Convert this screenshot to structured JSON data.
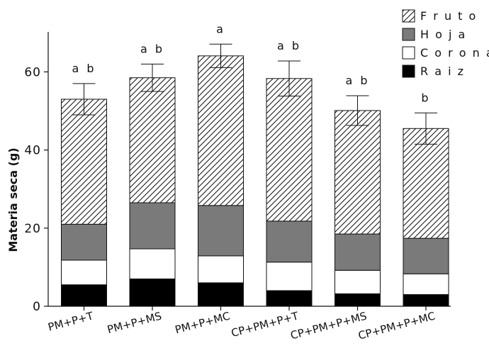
{
  "chart_data": {
    "type": "bar",
    "stacked": true,
    "categories": [
      "PM+P+T",
      "PM+P+MS",
      "PM+P+MC",
      "CP+PM+P+T",
      "CP+PM+P+MS",
      "CP+PM+P+MC"
    ],
    "series": [
      {
        "name": "Raiz",
        "values": [
          5.5,
          7.0,
          6.0,
          4.0,
          3.2,
          3.0
        ],
        "color": "#000000",
        "pattern": "solid"
      },
      {
        "name": "Corona",
        "values": [
          6.3,
          7.7,
          6.9,
          7.3,
          6.0,
          5.3
        ],
        "color": "#ffffff",
        "pattern": "solid"
      },
      {
        "name": "Hoja",
        "values": [
          9.2,
          11.8,
          12.9,
          10.5,
          9.3,
          9.1
        ],
        "color": "#7a7a7a",
        "pattern": "solid"
      },
      {
        "name": "Fruto",
        "values": [
          32.0,
          32.0,
          38.3,
          36.5,
          31.6,
          28.1
        ],
        "color": "#ffffff",
        "pattern": "hatched"
      }
    ],
    "totals": [
      53.0,
      58.5,
      64.1,
      58.3,
      50.1,
      45.5
    ],
    "error_bars": [
      4.0,
      3.5,
      3.0,
      4.5,
      3.8,
      4.0
    ],
    "significance": [
      "a b",
      "a b",
      "a",
      "a b",
      "a b",
      "b"
    ],
    "xlabel": "",
    "ylabel": "Materia seca (g)",
    "yticks": [
      0,
      20,
      40,
      60
    ],
    "ylim": [
      0,
      70
    ],
    "legend_placement": "top-right",
    "legend_order": [
      "Fruto",
      "Hoja",
      "Corona",
      "Raiz"
    ],
    "legend_labels": [
      "F r u t o",
      "H o j a",
      "C o r o n a",
      "R a i z"
    ],
    "grid": false
  }
}
